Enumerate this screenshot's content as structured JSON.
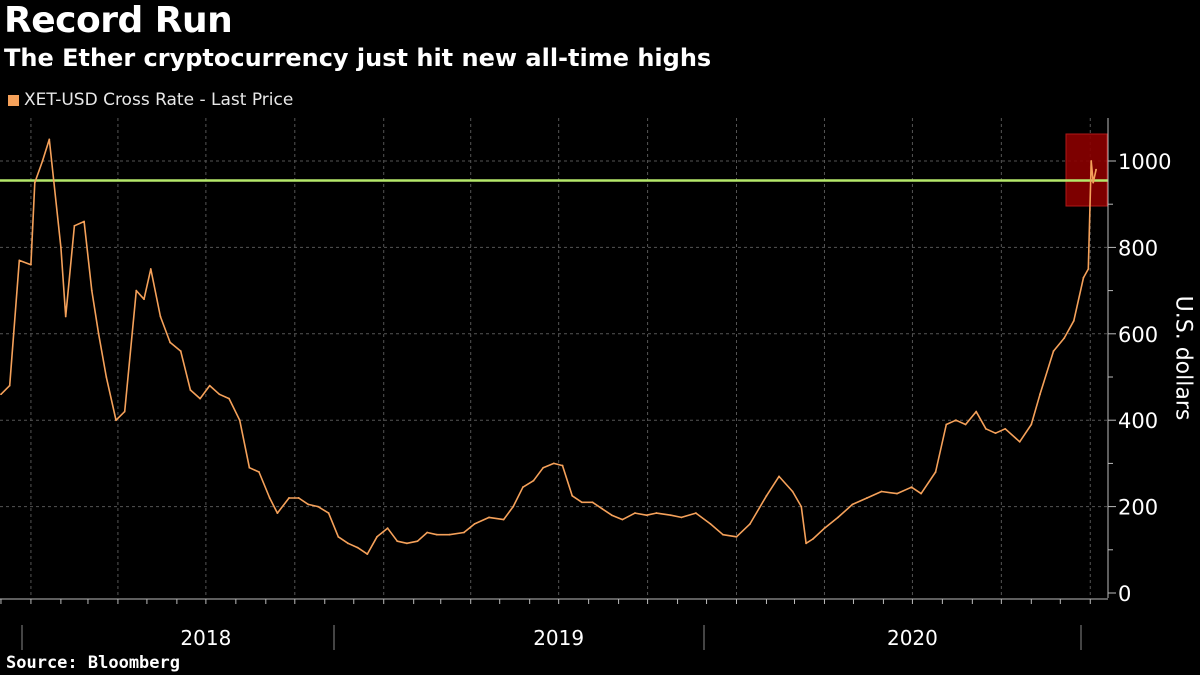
{
  "chart_data": {
    "type": "line",
    "title": "Record Run",
    "subtitle": "The Ether cryptocurrency just hit new all-time highs",
    "source": "Source: Bloomberg",
    "ylabel": "U.S. dollars",
    "ylim": [
      0,
      1080
    ],
    "y_ticks": [
      0,
      200,
      400,
      600,
      800,
      1000
    ],
    "x_tick_labels": [
      "2018",
      "2019",
      "2020"
    ],
    "grid": true,
    "legend_position": "top-left",
    "colors": {
      "series": "#f5a15a",
      "highlight_line": "#b5e86a",
      "highlight_box": "#8b0000",
      "grid": "#555555",
      "background": "#000000"
    },
    "reference_line": {
      "value": 955,
      "label": ""
    },
    "series": [
      {
        "name": "XET-USD Cross Rate - Last Price",
        "x": [
          "2017-12-01",
          "2017-12-10",
          "2017-12-20",
          "2018-01-01",
          "2018-01-05",
          "2018-01-13",
          "2018-01-20",
          "2018-02-01",
          "2018-02-06",
          "2018-02-15",
          "2018-02-25",
          "2018-03-05",
          "2018-03-12",
          "2018-03-20",
          "2018-03-30",
          "2018-04-08",
          "2018-04-20",
          "2018-04-28",
          "2018-05-05",
          "2018-05-15",
          "2018-05-25",
          "2018-06-05",
          "2018-06-15",
          "2018-06-25",
          "2018-07-05",
          "2018-07-15",
          "2018-07-25",
          "2018-08-05",
          "2018-08-15",
          "2018-08-25",
          "2018-09-05",
          "2018-09-13",
          "2018-09-25",
          "2018-10-05",
          "2018-10-15",
          "2018-10-25",
          "2018-11-05",
          "2018-11-15",
          "2018-11-25",
          "2018-12-05",
          "2018-12-15",
          "2018-12-25",
          "2019-01-05",
          "2019-01-15",
          "2019-01-25",
          "2019-02-05",
          "2019-02-15",
          "2019-02-25",
          "2019-03-10",
          "2019-03-25",
          "2019-04-05",
          "2019-04-20",
          "2019-05-05",
          "2019-05-15",
          "2019-05-25",
          "2019-06-05",
          "2019-06-15",
          "2019-06-26",
          "2019-07-05",
          "2019-07-15",
          "2019-07-25",
          "2019-08-05",
          "2019-08-15",
          "2019-08-25",
          "2019-09-05",
          "2019-09-18",
          "2019-09-30",
          "2019-10-10",
          "2019-10-25",
          "2019-11-05",
          "2019-11-20",
          "2019-12-05",
          "2019-12-18",
          "2020-01-01",
          "2020-01-15",
          "2020-02-01",
          "2020-02-14",
          "2020-02-28",
          "2020-03-08",
          "2020-03-13",
          "2020-03-20",
          "2020-04-01",
          "2020-04-15",
          "2020-04-30",
          "2020-05-15",
          "2020-05-30",
          "2020-06-15",
          "2020-06-30",
          "2020-07-10",
          "2020-07-25",
          "2020-08-05",
          "2020-08-15",
          "2020-08-25",
          "2020-09-05",
          "2020-09-15",
          "2020-09-25",
          "2020-10-05",
          "2020-10-20",
          "2020-11-01",
          "2020-11-10",
          "2020-11-24",
          "2020-12-05",
          "2020-12-15",
          "2020-12-25",
          "2020-12-30",
          "2021-01-02",
          "2021-01-04",
          "2021-01-07"
        ],
        "values": [
          460,
          480,
          770,
          760,
          950,
          1000,
          1050,
          800,
          640,
          850,
          860,
          700,
          600,
          500,
          400,
          420,
          700,
          680,
          750,
          640,
          580,
          560,
          470,
          450,
          480,
          460,
          450,
          400,
          290,
          280,
          220,
          185,
          220,
          220,
          205,
          200,
          185,
          130,
          115,
          105,
          90,
          130,
          150,
          120,
          115,
          120,
          140,
          135,
          135,
          140,
          160,
          175,
          170,
          200,
          245,
          260,
          290,
          300,
          295,
          225,
          210,
          210,
          195,
          180,
          170,
          185,
          180,
          185,
          180,
          175,
          185,
          160,
          135,
          130,
          160,
          225,
          270,
          235,
          200,
          115,
          125,
          150,
          175,
          205,
          220,
          235,
          230,
          245,
          230,
          280,
          390,
          400,
          390,
          420,
          380,
          370,
          380,
          350,
          390,
          460,
          560,
          590,
          630,
          730,
          750,
          1000,
          950,
          980
        ]
      }
    ]
  }
}
